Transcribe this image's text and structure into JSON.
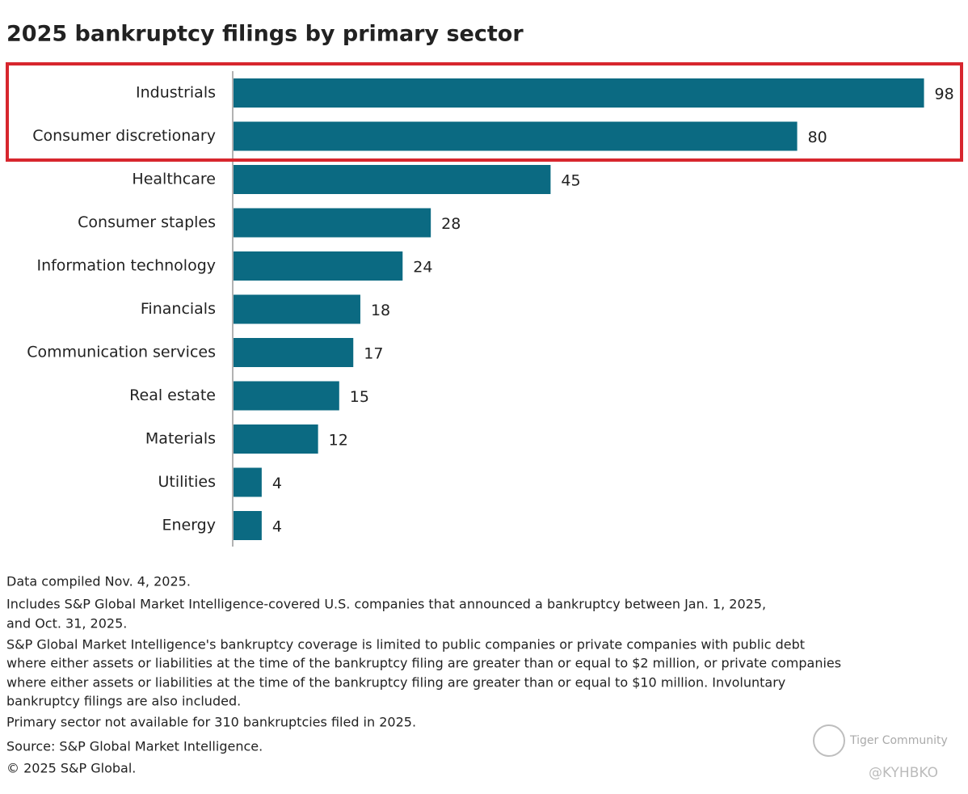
{
  "chart_data": {
    "type": "bar",
    "orientation": "horizontal",
    "title": "2025 bankruptcy filings by primary sector",
    "categories": [
      "Industrials",
      "Consumer discretionary",
      "Healthcare",
      "Consumer staples",
      "Information technology",
      "Financials",
      "Communication services",
      "Real estate",
      "Materials",
      "Utilities",
      "Energy"
    ],
    "values": [
      98,
      80,
      45,
      28,
      24,
      18,
      17,
      15,
      12,
      4,
      4
    ],
    "color": "#0b6a82",
    "notes": [
      "Data compiled Nov. 4, 2025.",
      "Includes S&P Global Market Intelligence-covered U.S. companies that announced a bankruptcy between Jan. 1, 2025,",
      "and Oct. 31, 2025.",
      "S&P Global Market Intelligence's bankruptcy coverage is limited to public companies or private companies with public debt",
      "where either assets or liabilities at the time of the bankruptcy filing are greater than or equal to $2 million, or private companies",
      "where either assets or liabilities at the time of the bankruptcy filing are greater than or equal to $10 million. Involuntary",
      "bankruptcy filings are also included.",
      "Primary sector not available for 310 bankruptcies filed in 2025.",
      "Source: S&P Global Market Intelligence.",
      "© 2025 S&P Global."
    ],
    "watermark": [
      "Tiger Community",
      "@KYHBKO"
    ]
  }
}
